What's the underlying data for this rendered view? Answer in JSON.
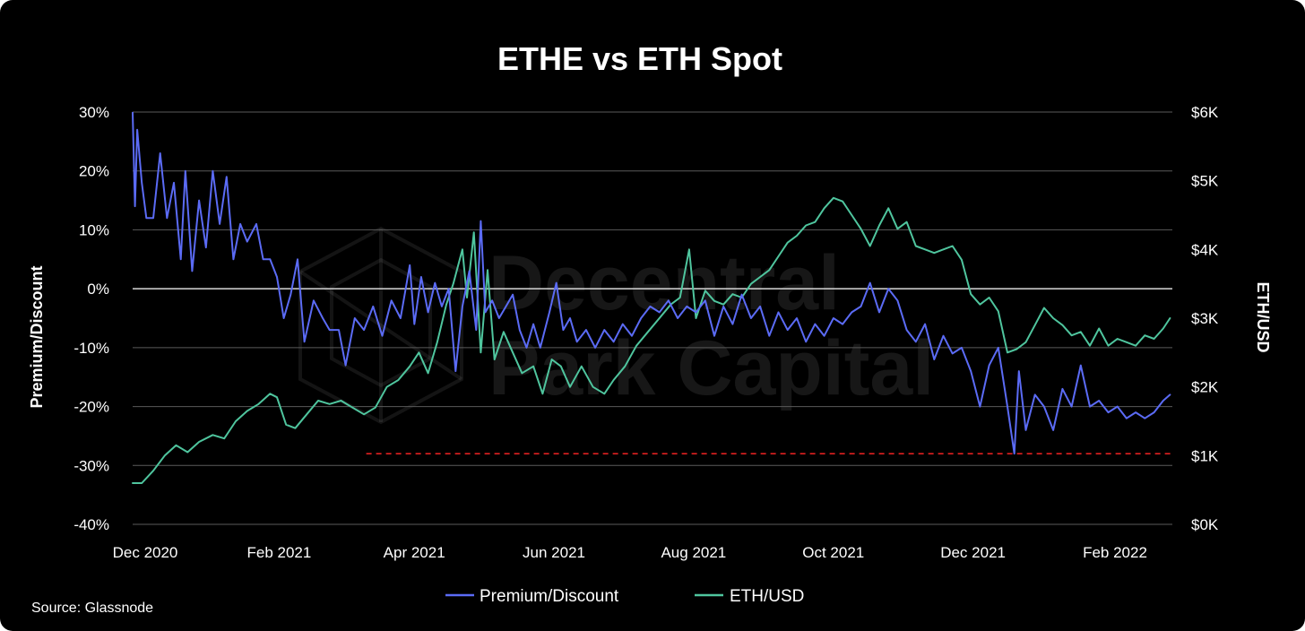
{
  "chart_data": {
    "type": "line",
    "title": "ETHE vs ETH Spot",
    "ylabel_left": "Premium/Discount",
    "ylabel_right": "ETH/USD",
    "xlabel": "",
    "x_ticks": [
      "Dec 2020",
      "Feb 2021",
      "Apr 2021",
      "Jun 2021",
      "Aug 2021",
      "Oct 2021",
      "Dec 2021",
      "Feb 2022"
    ],
    "x_range": [
      "2020-12-01",
      "2022-02-28"
    ],
    "y_left_ticks": [
      "30%",
      "20%",
      "10%",
      "0%",
      "-10%",
      "-20%",
      "-30%",
      "-40%"
    ],
    "y_left_range": [
      -40,
      30
    ],
    "y_right_ticks": [
      "$6K",
      "$5K",
      "$4K",
      "$3K",
      "$2K",
      "$1K",
      "$0K"
    ],
    "y_right_range": [
      0,
      6000
    ],
    "grid": true,
    "legend_position": "bottom-center",
    "series": [
      {
        "name": "Premium/Discount",
        "axis": "left",
        "unit": "%",
        "color": "#5b6bf5",
        "points": [
          [
            "2020-12-01",
            29.9
          ],
          [
            "2020-12-02",
            14
          ],
          [
            "2020-12-03",
            27
          ],
          [
            "2020-12-05",
            18
          ],
          [
            "2020-12-07",
            12
          ],
          [
            "2020-12-10",
            12
          ],
          [
            "2020-12-13",
            23
          ],
          [
            "2020-12-16",
            12
          ],
          [
            "2020-12-19",
            18
          ],
          [
            "2020-12-22",
            5
          ],
          [
            "2020-12-24",
            20
          ],
          [
            "2020-12-27",
            3
          ],
          [
            "2020-12-30",
            15
          ],
          [
            "2021-01-02",
            7
          ],
          [
            "2021-01-05",
            20
          ],
          [
            "2021-01-08",
            11
          ],
          [
            "2021-01-11",
            19
          ],
          [
            "2021-01-14",
            5
          ],
          [
            "2021-01-17",
            11
          ],
          [
            "2021-01-20",
            8
          ],
          [
            "2021-01-24",
            11
          ],
          [
            "2021-01-27",
            5
          ],
          [
            "2021-01-30",
            5
          ],
          [
            "2021-02-02",
            2
          ],
          [
            "2021-02-05",
            -5
          ],
          [
            "2021-02-08",
            -1
          ],
          [
            "2021-02-11",
            5
          ],
          [
            "2021-02-14",
            -9
          ],
          [
            "2021-02-18",
            -2
          ],
          [
            "2021-02-22",
            -5
          ],
          [
            "2021-02-25",
            -7
          ],
          [
            "2021-03-01",
            -7
          ],
          [
            "2021-03-04",
            -13
          ],
          [
            "2021-03-08",
            -5
          ],
          [
            "2021-03-12",
            -7
          ],
          [
            "2021-03-16",
            -3
          ],
          [
            "2021-03-20",
            -8
          ],
          [
            "2021-03-24",
            -2
          ],
          [
            "2021-03-28",
            -5
          ],
          [
            "2021-04-01",
            4
          ],
          [
            "2021-04-03",
            -6
          ],
          [
            "2021-04-06",
            2
          ],
          [
            "2021-04-09",
            -4
          ],
          [
            "2021-04-12",
            1
          ],
          [
            "2021-04-15",
            -3
          ],
          [
            "2021-04-18",
            0
          ],
          [
            "2021-04-21",
            -14
          ],
          [
            "2021-04-24",
            -3
          ],
          [
            "2021-04-27",
            3
          ],
          [
            "2021-04-30",
            -7
          ],
          [
            "2021-05-02",
            11.5
          ],
          [
            "2021-05-04",
            -4
          ],
          [
            "2021-05-07",
            -2
          ],
          [
            "2021-05-10",
            -5
          ],
          [
            "2021-05-13",
            -3
          ],
          [
            "2021-05-16",
            -1
          ],
          [
            "2021-05-19",
            -7
          ],
          [
            "2021-05-22",
            -10
          ],
          [
            "2021-05-25",
            -6
          ],
          [
            "2021-05-28",
            -10
          ],
          [
            "2021-06-01",
            -4
          ],
          [
            "2021-06-04",
            1
          ],
          [
            "2021-06-07",
            -7
          ],
          [
            "2021-06-10",
            -5
          ],
          [
            "2021-06-13",
            -9
          ],
          [
            "2021-06-17",
            -7
          ],
          [
            "2021-06-21",
            -10
          ],
          [
            "2021-06-25",
            -7
          ],
          [
            "2021-06-29",
            -9
          ],
          [
            "2021-07-03",
            -6
          ],
          [
            "2021-07-07",
            -8
          ],
          [
            "2021-07-11",
            -5
          ],
          [
            "2021-07-15",
            -3
          ],
          [
            "2021-07-19",
            -4
          ],
          [
            "2021-07-23",
            -2
          ],
          [
            "2021-07-27",
            -5
          ],
          [
            "2021-07-31",
            -3
          ],
          [
            "2021-08-04",
            -4
          ],
          [
            "2021-08-08",
            -2
          ],
          [
            "2021-08-12",
            -8
          ],
          [
            "2021-08-16",
            -3
          ],
          [
            "2021-08-20",
            -6
          ],
          [
            "2021-08-24",
            -1
          ],
          [
            "2021-08-28",
            -5
          ],
          [
            "2021-09-01",
            -3
          ],
          [
            "2021-09-05",
            -8
          ],
          [
            "2021-09-09",
            -4
          ],
          [
            "2021-09-13",
            -7
          ],
          [
            "2021-09-17",
            -5
          ],
          [
            "2021-09-21",
            -9
          ],
          [
            "2021-09-25",
            -6
          ],
          [
            "2021-09-29",
            -8
          ],
          [
            "2021-10-03",
            -5
          ],
          [
            "2021-10-07",
            -6
          ],
          [
            "2021-10-11",
            -4
          ],
          [
            "2021-10-15",
            -3
          ],
          [
            "2021-10-19",
            1
          ],
          [
            "2021-10-23",
            -4
          ],
          [
            "2021-10-27",
            0
          ],
          [
            "2021-10-31",
            -2
          ],
          [
            "2021-11-04",
            -7
          ],
          [
            "2021-11-08",
            -9
          ],
          [
            "2021-11-12",
            -6
          ],
          [
            "2021-11-16",
            -12
          ],
          [
            "2021-11-20",
            -8
          ],
          [
            "2021-11-24",
            -11
          ],
          [
            "2021-11-28",
            -10
          ],
          [
            "2021-12-02",
            -14
          ],
          [
            "2021-12-06",
            -20
          ],
          [
            "2021-12-10",
            -13
          ],
          [
            "2021-12-14",
            -10
          ],
          [
            "2021-12-18",
            -20
          ],
          [
            "2021-12-21",
            -28
          ],
          [
            "2021-12-23",
            -14
          ],
          [
            "2021-12-26",
            -24
          ],
          [
            "2021-12-30",
            -18
          ],
          [
            "2022-01-03",
            -20
          ],
          [
            "2022-01-07",
            -24
          ],
          [
            "2022-01-11",
            -17
          ],
          [
            "2022-01-15",
            -20
          ],
          [
            "2022-01-19",
            -13
          ],
          [
            "2022-01-23",
            -20
          ],
          [
            "2022-01-27",
            -19
          ],
          [
            "2022-01-31",
            -21
          ],
          [
            "2022-02-04",
            -20
          ],
          [
            "2022-02-08",
            -22
          ],
          [
            "2022-02-12",
            -21
          ],
          [
            "2022-02-16",
            -22
          ],
          [
            "2022-02-20",
            -21
          ],
          [
            "2022-02-24",
            -19
          ],
          [
            "2022-02-27",
            -18
          ]
        ]
      },
      {
        "name": "ETH/USD",
        "axis": "right",
        "unit": "USD",
        "color": "#4fc59e",
        "points": [
          [
            "2020-12-01",
            600
          ],
          [
            "2020-12-05",
            600
          ],
          [
            "2020-12-10",
            780
          ],
          [
            "2020-12-15",
            1000
          ],
          [
            "2020-12-20",
            1150
          ],
          [
            "2020-12-25",
            1050
          ],
          [
            "2020-12-30",
            1200
          ],
          [
            "2021-01-05",
            1300
          ],
          [
            "2021-01-10",
            1250
          ],
          [
            "2021-01-15",
            1500
          ],
          [
            "2021-01-20",
            1650
          ],
          [
            "2021-01-25",
            1750
          ],
          [
            "2021-01-30",
            1900
          ],
          [
            "2021-02-02",
            1850
          ],
          [
            "2021-02-06",
            1450
          ],
          [
            "2021-02-10",
            1400
          ],
          [
            "2021-02-15",
            1600
          ],
          [
            "2021-02-20",
            1800
          ],
          [
            "2021-02-25",
            1750
          ],
          [
            "2021-03-02",
            1800
          ],
          [
            "2021-03-07",
            1700
          ],
          [
            "2021-03-12",
            1600
          ],
          [
            "2021-03-17",
            1700
          ],
          [
            "2021-03-22",
            2000
          ],
          [
            "2021-03-27",
            2100
          ],
          [
            "2021-04-01",
            2300
          ],
          [
            "2021-04-05",
            2500
          ],
          [
            "2021-04-09",
            2200
          ],
          [
            "2021-04-13",
            2650
          ],
          [
            "2021-04-17",
            3200
          ],
          [
            "2021-04-20",
            3500
          ],
          [
            "2021-04-24",
            4000
          ],
          [
            "2021-04-26",
            3300
          ],
          [
            "2021-04-29",
            4250
          ],
          [
            "2021-05-02",
            2500
          ],
          [
            "2021-05-05",
            3700
          ],
          [
            "2021-05-08",
            2400
          ],
          [
            "2021-05-12",
            2800
          ],
          [
            "2021-05-16",
            2500
          ],
          [
            "2021-05-20",
            2200
          ],
          [
            "2021-05-25",
            2300
          ],
          [
            "2021-05-29",
            1900
          ],
          [
            "2021-06-02",
            2400
          ],
          [
            "2021-06-06",
            2300
          ],
          [
            "2021-06-10",
            2000
          ],
          [
            "2021-06-15",
            2300
          ],
          [
            "2021-06-20",
            2000
          ],
          [
            "2021-06-25",
            1900
          ],
          [
            "2021-06-29",
            2100
          ],
          [
            "2021-07-04",
            2300
          ],
          [
            "2021-07-09",
            2600
          ],
          [
            "2021-07-14",
            2800
          ],
          [
            "2021-07-19",
            3000
          ],
          [
            "2021-07-24",
            3200
          ],
          [
            "2021-07-28",
            3300
          ],
          [
            "2021-08-01",
            4000
          ],
          [
            "2021-08-04",
            3000
          ],
          [
            "2021-08-08",
            3400
          ],
          [
            "2021-08-12",
            3250
          ],
          [
            "2021-08-16",
            3200
          ],
          [
            "2021-08-20",
            3350
          ],
          [
            "2021-08-24",
            3300
          ],
          [
            "2021-08-28",
            3500
          ],
          [
            "2021-09-01",
            3600
          ],
          [
            "2021-09-05",
            3700
          ],
          [
            "2021-09-09",
            3900
          ],
          [
            "2021-09-13",
            4100
          ],
          [
            "2021-09-17",
            4200
          ],
          [
            "2021-09-21",
            4350
          ],
          [
            "2021-09-25",
            4400
          ],
          [
            "2021-09-29",
            4600
          ],
          [
            "2021-10-03",
            4750
          ],
          [
            "2021-10-07",
            4700
          ],
          [
            "2021-10-11",
            4500
          ],
          [
            "2021-10-15",
            4300
          ],
          [
            "2021-10-19",
            4050
          ],
          [
            "2021-10-23",
            4350
          ],
          [
            "2021-10-27",
            4600
          ],
          [
            "2021-10-31",
            4300
          ],
          [
            "2021-11-04",
            4400
          ],
          [
            "2021-11-08",
            4050
          ],
          [
            "2021-11-12",
            4000
          ],
          [
            "2021-11-16",
            3950
          ],
          [
            "2021-11-20",
            4000
          ],
          [
            "2021-11-24",
            4050
          ],
          [
            "2021-11-28",
            3850
          ],
          [
            "2021-12-02",
            3350
          ],
          [
            "2021-12-06",
            3200
          ],
          [
            "2021-12-10",
            3300
          ],
          [
            "2021-12-14",
            3100
          ],
          [
            "2021-12-18",
            2500
          ],
          [
            "2021-12-22",
            2550
          ],
          [
            "2021-12-26",
            2650
          ],
          [
            "2021-12-30",
            2900
          ],
          [
            "2022-01-03",
            3150
          ],
          [
            "2022-01-07",
            3000
          ],
          [
            "2022-01-11",
            2900
          ],
          [
            "2022-01-15",
            2750
          ],
          [
            "2022-01-19",
            2800
          ],
          [
            "2022-01-23",
            2600
          ],
          [
            "2022-01-27",
            2850
          ],
          [
            "2022-01-31",
            2600
          ],
          [
            "2022-02-04",
            2700
          ],
          [
            "2022-02-08",
            2650
          ],
          [
            "2022-02-12",
            2600
          ],
          [
            "2022-02-16",
            2750
          ],
          [
            "2022-02-20",
            2700
          ],
          [
            "2022-02-24",
            2850
          ],
          [
            "2022-02-27",
            3000
          ]
        ]
      }
    ],
    "reference_lines": [
      {
        "axis": "left",
        "value": -28,
        "start": "2021-03-13",
        "end": "2022-02-28",
        "style": "dashed",
        "color": "#e02020"
      }
    ],
    "watermark": [
      "Decentral",
      "Park Capital"
    ]
  },
  "source": "Source: Glassnode"
}
